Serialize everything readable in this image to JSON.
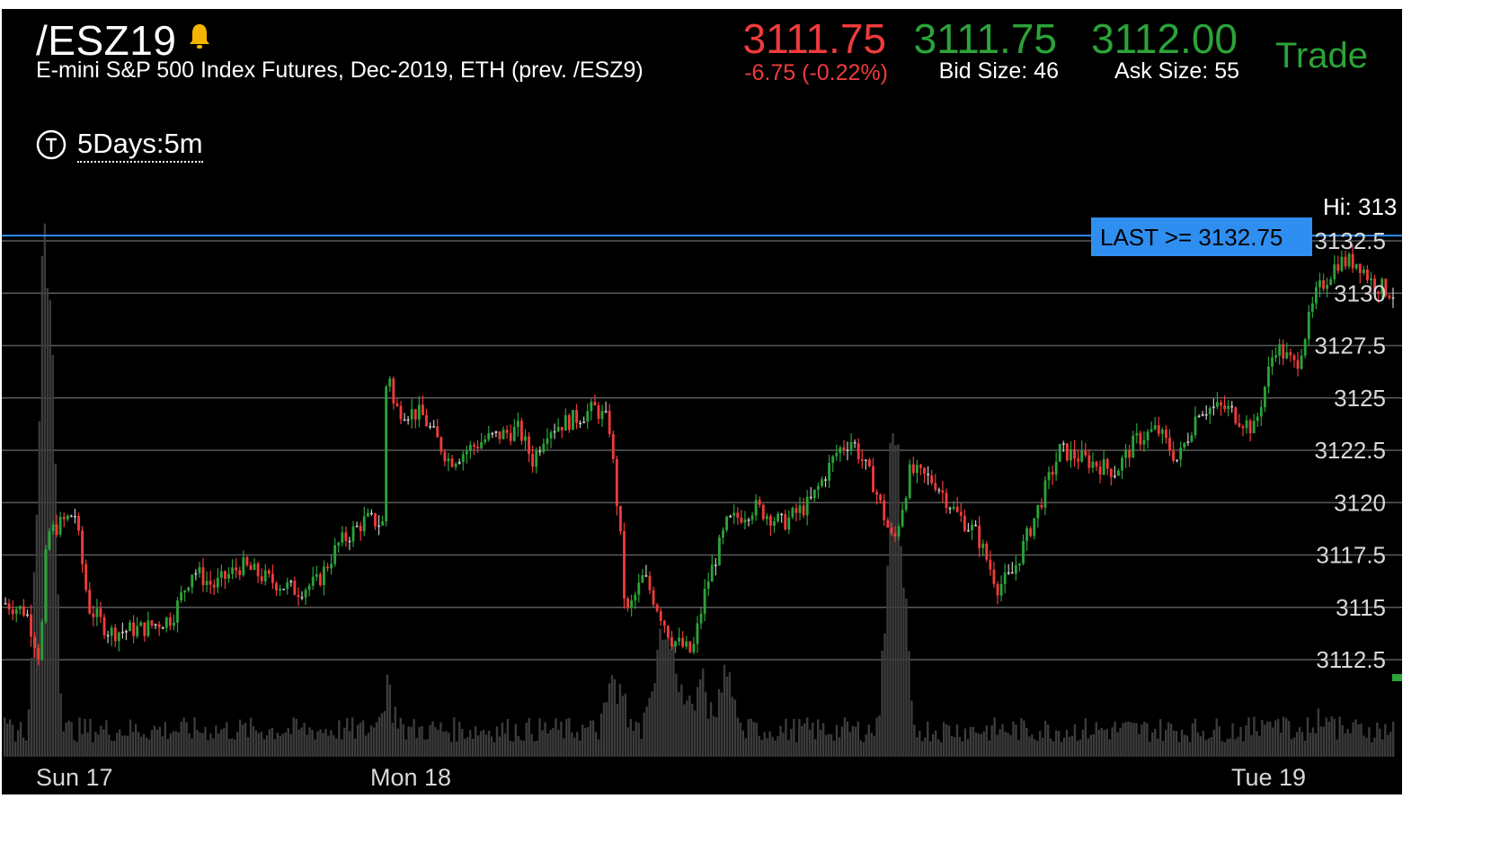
{
  "header": {
    "symbol": "/ESZ19",
    "description": "E-mini S&P 500 Index Futures, Dec-2019, ETH (prev. /ESZ9)",
    "last": "3111.75",
    "change": "-6.75 (-0.22%)",
    "bid": "3111.75",
    "bid_size": "Bid Size: 46",
    "ask": "3112.00",
    "ask_size": "Ask Size: 55",
    "trade_label": "Trade",
    "bell_icon": "bell-icon",
    "timeframe_icon": "clock-t-icon",
    "timeframe": "5Days:5m"
  },
  "chart": {
    "hi_label": "Hi: 313",
    "alert_label": "LAST >= 3132.75",
    "alert_level": 3132.75,
    "x_labels": [
      {
        "text": "Sun 17"
      },
      {
        "text": "Mon 18"
      },
      {
        "text": "Tue 19"
      }
    ]
  },
  "colors": {
    "up": "#2ba339",
    "down": "#ef3b3b",
    "neutral": "#c8c8c8",
    "volume": "#3c3c3c",
    "alert": "#2f8ff0",
    "grid": "#5a5a5a",
    "bell": "#f5b400"
  },
  "chart_data": {
    "type": "candlestick",
    "price_axis_ticks": [
      "3132.5",
      "3130",
      "3127.5",
      "3125",
      "3122.5",
      "3120",
      "3117.5",
      "3115",
      "3112.5"
    ],
    "ylim": [
      3109.5,
      3134
    ],
    "series": [
      {
        "name": "price",
        "waypoints": [
          [
            0,
            3115.2
          ],
          [
            0.015,
            3114.8
          ],
          [
            0.025,
            3112.5
          ],
          [
            0.03,
            3118.5
          ],
          [
            0.05,
            3119.5
          ],
          [
            0.06,
            3115.0
          ],
          [
            0.075,
            3113.8
          ],
          [
            0.1,
            3114.0
          ],
          [
            0.12,
            3114.5
          ],
          [
            0.135,
            3116.8
          ],
          [
            0.15,
            3116.0
          ],
          [
            0.17,
            3117.0
          ],
          [
            0.19,
            3116.3
          ],
          [
            0.21,
            3115.8
          ],
          [
            0.225,
            3116.2
          ],
          [
            0.24,
            3118.0
          ],
          [
            0.26,
            3119.2
          ],
          [
            0.272,
            3119.0
          ],
          [
            0.275,
            3127.2
          ],
          [
            0.28,
            3124.5
          ],
          [
            0.3,
            3124.2
          ],
          [
            0.32,
            3122.0
          ],
          [
            0.345,
            3123.0
          ],
          [
            0.37,
            3123.5
          ],
          [
            0.38,
            3122.0
          ],
          [
            0.39,
            3123.5
          ],
          [
            0.41,
            3124.0
          ],
          [
            0.425,
            3124.5
          ],
          [
            0.435,
            3123.8
          ],
          [
            0.443,
            3118.5
          ],
          [
            0.447,
            3114.5
          ],
          [
            0.46,
            3116.5
          ],
          [
            0.48,
            3113.5
          ],
          [
            0.495,
            3112.8
          ],
          [
            0.505,
            3116.0
          ],
          [
            0.52,
            3119.0
          ],
          [
            0.54,
            3119.8
          ],
          [
            0.56,
            3119.0
          ],
          [
            0.58,
            3120.0
          ],
          [
            0.6,
            3122.5
          ],
          [
            0.61,
            3123.0
          ],
          [
            0.625,
            3121.0
          ],
          [
            0.64,
            3118.0
          ],
          [
            0.652,
            3121.5
          ],
          [
            0.67,
            3121.0
          ],
          [
            0.685,
            3119.5
          ],
          [
            0.7,
            3118.5
          ],
          [
            0.715,
            3116.0
          ],
          [
            0.725,
            3116.5
          ],
          [
            0.74,
            3119.0
          ],
          [
            0.76,
            3122.5
          ],
          [
            0.78,
            3122.0
          ],
          [
            0.8,
            3121.5
          ],
          [
            0.815,
            3123.0
          ],
          [
            0.83,
            3123.5
          ],
          [
            0.845,
            3122.0
          ],
          [
            0.86,
            3124.5
          ],
          [
            0.88,
            3124.5
          ],
          [
            0.9,
            3123.5
          ],
          [
            0.915,
            3127.5
          ],
          [
            0.93,
            3126.5
          ],
          [
            0.945,
            3130.0
          ],
          [
            0.96,
            3131.5
          ],
          [
            0.975,
            3131.5
          ],
          [
            0.985,
            3130.5
          ],
          [
            1.0,
            3130.0
          ]
        ]
      },
      {
        "name": "volume",
        "baseline": 8,
        "spikes": [
          [
            0.03,
            150
          ],
          [
            0.03,
            170
          ],
          [
            0.028,
            75
          ],
          [
            0.275,
            28
          ],
          [
            0.44,
            40
          ],
          [
            0.47,
            40
          ],
          [
            0.48,
            70
          ],
          [
            0.5,
            40
          ],
          [
            0.52,
            35
          ],
          [
            0.642,
            140
          ],
          [
            0.64,
            80
          ],
          [
            0.91,
            10
          ],
          [
            0.95,
            10
          ]
        ]
      }
    ]
  }
}
